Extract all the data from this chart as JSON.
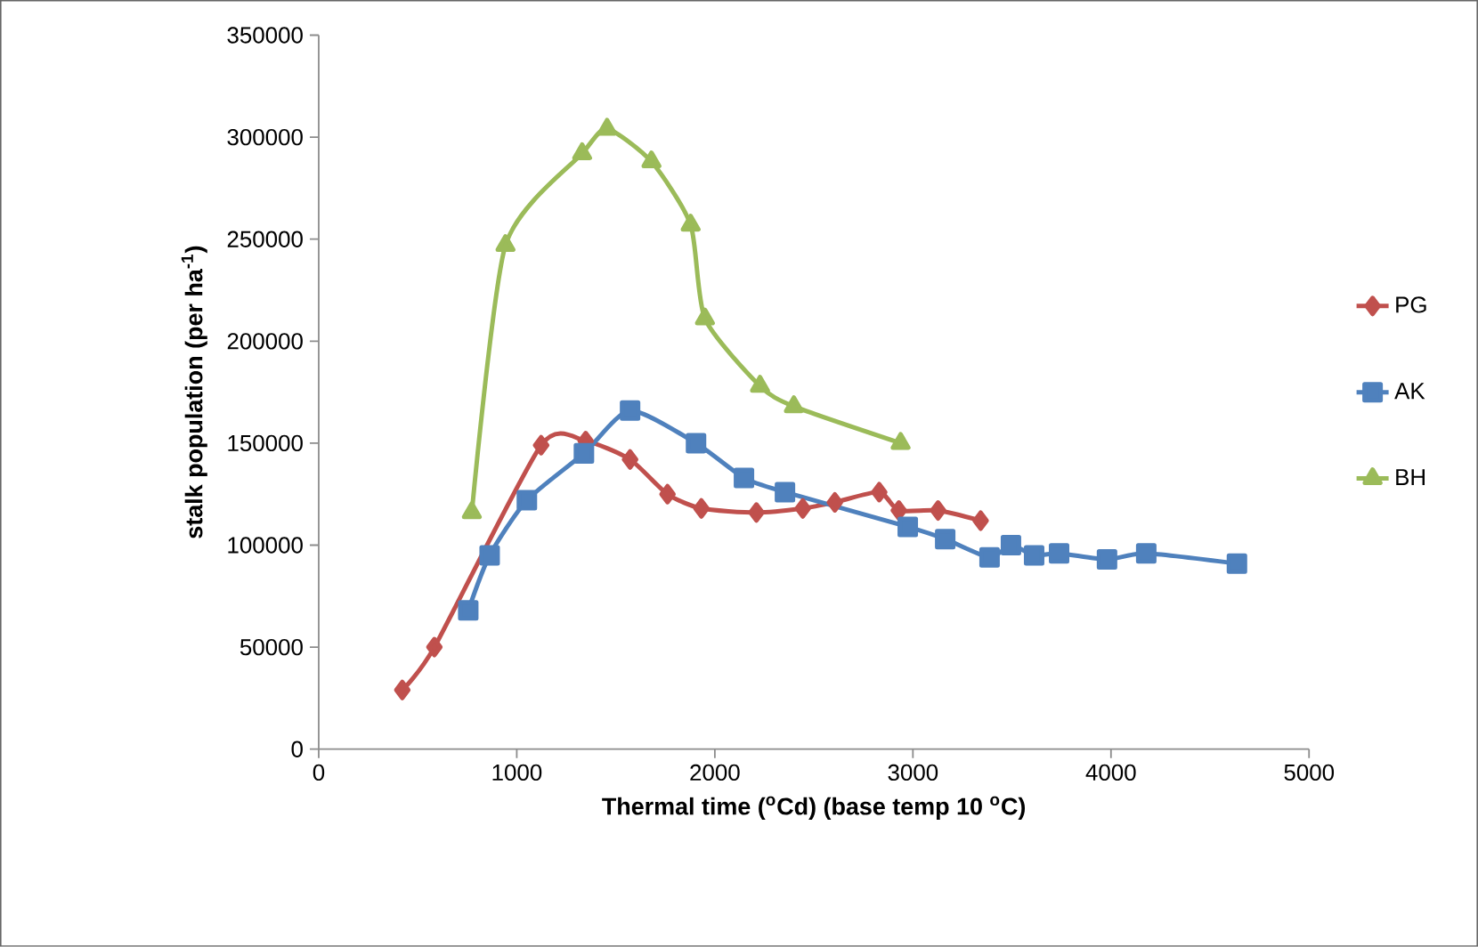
{
  "chart_data": {
    "type": "line",
    "xlabel": "Thermal time ($^{o}$Cd) (base temp 10 $^{o}$C)",
    "ylabel": "stalk population (per ha$^{-1}$)",
    "xlim": [
      0,
      5000
    ],
    "xticks": [
      0,
      1000,
      2000,
      3000,
      4000,
      5000
    ],
    "ylim": [
      0,
      350000
    ],
    "yticks": [
      0,
      50000,
      100000,
      150000,
      200000,
      250000,
      300000,
      350000
    ],
    "grid": false,
    "legend": "right",
    "line_style": "solid",
    "series": [
      {
        "name": "PG",
        "color": "#c0504d",
        "marker": "diamond",
        "x": [
          422,
          584,
          1123,
          1348,
          1572,
          1761,
          1932,
          2210,
          2444,
          2606,
          2830,
          2929,
          3127,
          3342
        ],
        "values": [
          29000,
          50000,
          149000,
          151000,
          142000,
          125000,
          118000,
          116000,
          118000,
          121000,
          126000,
          117000,
          117000,
          112000
        ]
      },
      {
        "name": "AK",
        "color": "#4f81bd",
        "marker": "square",
        "x": [
          755,
          863,
          1051,
          1339,
          1572,
          1905,
          2147,
          2354,
          2974,
          3163,
          3387,
          3495,
          3612,
          3738,
          3980,
          4178,
          4636
        ],
        "values": [
          68000,
          95000,
          122000,
          145000,
          166000,
          150000,
          133000,
          126000,
          109000,
          103000,
          94000,
          100000,
          95000,
          96000,
          93000,
          96000,
          91000
        ]
      },
      {
        "name": "BH",
        "color": "#9bbb59",
        "marker": "triangle",
        "x": [
          773,
          943,
          1330,
          1456,
          1680,
          1878,
          1950,
          2228,
          2399,
          2938
        ],
        "values": [
          116000,
          247000,
          292000,
          304000,
          288000,
          257000,
          211000,
          178000,
          168000,
          150000
        ]
      }
    ]
  }
}
